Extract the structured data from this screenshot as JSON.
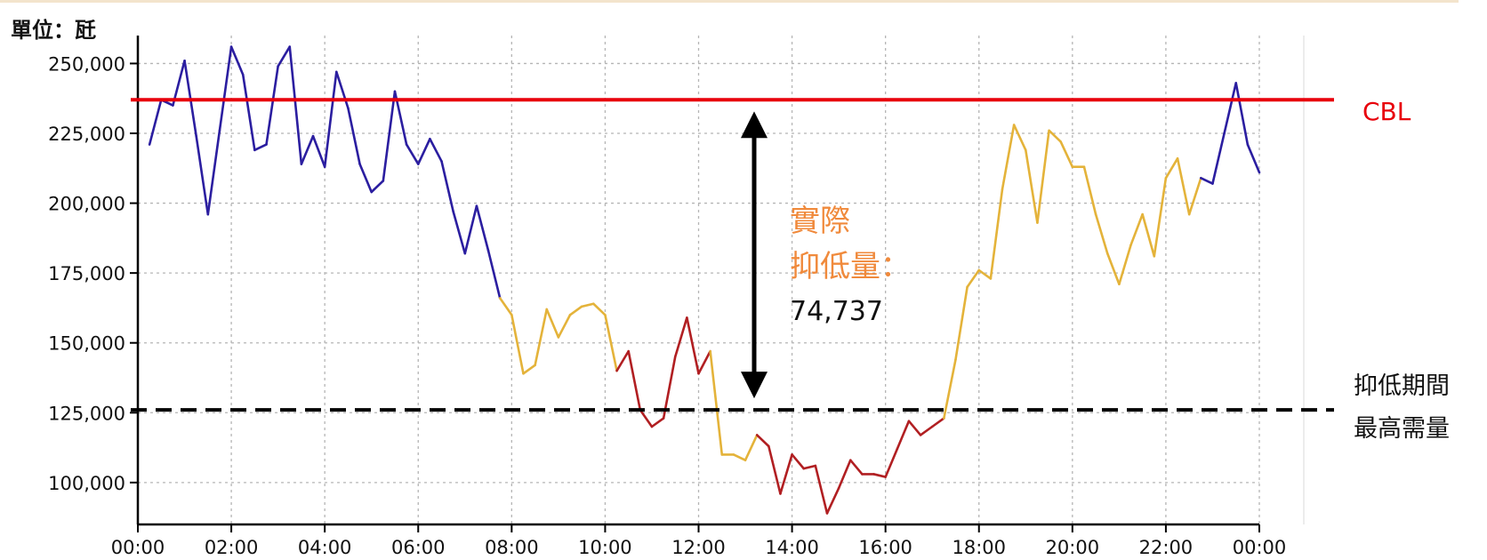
{
  "unit_label": "單位：瓩",
  "chart_data": {
    "type": "line",
    "x_ticks": [
      "00:00",
      "02:00",
      "04:00",
      "06:00",
      "08:00",
      "10:00",
      "12:00",
      "14:00",
      "16:00",
      "18:00",
      "20:00",
      "22:00",
      "00:00"
    ],
    "y_ticks": [
      "100,000",
      "125,000",
      "150,000",
      "175,000",
      "200,000",
      "225,000",
      "250,000"
    ],
    "ylim": [
      85000,
      260000
    ],
    "xlim": [
      0,
      24
    ],
    "grid": true,
    "x_hours": [
      0.25,
      0.5,
      0.75,
      1.0,
      1.25,
      1.5,
      1.75,
      2.0,
      2.25,
      2.5,
      2.75,
      3.0,
      3.25,
      3.5,
      3.75,
      4.0,
      4.25,
      4.5,
      4.75,
      5.0,
      5.25,
      5.5,
      5.75,
      6.0,
      6.25,
      6.5,
      6.75,
      7.0,
      7.25,
      7.5,
      7.75,
      8.0,
      8.25,
      8.5,
      8.75,
      9.0,
      9.25,
      9.5,
      9.75,
      10.0,
      10.25,
      10.5,
      10.75,
      11.0,
      11.25,
      11.5,
      11.75,
      12.0,
      12.25,
      12.5,
      12.75,
      13.0,
      13.25,
      13.5,
      13.75,
      14.0,
      14.25,
      14.5,
      14.75,
      15.0,
      15.25,
      15.5,
      15.75,
      16.0,
      16.25,
      16.5,
      16.75,
      17.0,
      17.25,
      17.5,
      17.75,
      18.0,
      18.25,
      18.5,
      18.75,
      19.0,
      19.25,
      19.5,
      19.75,
      20.0,
      20.25,
      20.5,
      20.75,
      21.0,
      21.25,
      21.5,
      21.75,
      22.0,
      22.25,
      22.5,
      22.75,
      23.0,
      23.25,
      23.5,
      23.75,
      24.0
    ],
    "values": [
      221000,
      237000,
      235000,
      251000,
      224000,
      196000,
      226000,
      256000,
      246000,
      219000,
      221000,
      249000,
      256000,
      214000,
      224000,
      213000,
      247000,
      234000,
      214000,
      204000,
      208000,
      240000,
      221000,
      214000,
      223000,
      215000,
      197000,
      182000,
      199000,
      183000,
      166000,
      160000,
      139000,
      142000,
      162000,
      152000,
      160000,
      163000,
      164000,
      160000,
      140000,
      147000,
      126000,
      120000,
      123000,
      145000,
      159000,
      139000,
      147000,
      110000,
      110000,
      108000,
      117000,
      113000,
      96000,
      110000,
      105000,
      106000,
      89000,
      98000,
      108000,
      103000,
      103000,
      102000,
      112000,
      122000,
      117000,
      120000,
      123000,
      144000,
      170000,
      176000,
      173000,
      205000,
      228000,
      219000,
      193000,
      226000,
      222000,
      213000,
      213000,
      196000,
      182000,
      171000,
      185000,
      196000,
      181000,
      209000,
      216000,
      196000,
      209000,
      207000,
      225000,
      243000,
      221000,
      211000
    ],
    "segment_colors": {
      "blue": "#2b1ea0",
      "yellow": "#e4b33a",
      "red": "#b11f22"
    },
    "point_colors": [
      "blue",
      "blue",
      "blue",
      "blue",
      "blue",
      "blue",
      "blue",
      "blue",
      "blue",
      "blue",
      "blue",
      "blue",
      "blue",
      "blue",
      "blue",
      "blue",
      "blue",
      "blue",
      "blue",
      "blue",
      "blue",
      "blue",
      "blue",
      "blue",
      "blue",
      "blue",
      "blue",
      "blue",
      "blue",
      "blue",
      "blue",
      "yellow",
      "yellow",
      "yellow",
      "yellow",
      "yellow",
      "yellow",
      "yellow",
      "yellow",
      "yellow",
      "yellow",
      "red",
      "red",
      "red",
      "red",
      "red",
      "red",
      "red",
      "red",
      "yellow",
      "yellow",
      "yellow",
      "yellow",
      "red",
      "red",
      "red",
      "red",
      "red",
      "red",
      "red",
      "red",
      "red",
      "red",
      "red",
      "red",
      "red",
      "red",
      "red",
      "red",
      "yellow",
      "yellow",
      "yellow",
      "yellow",
      "yellow",
      "yellow",
      "yellow",
      "yellow",
      "yellow",
      "yellow",
      "yellow",
      "yellow",
      "yellow",
      "yellow",
      "yellow",
      "yellow",
      "yellow",
      "yellow",
      "yellow",
      "yellow",
      "yellow",
      "yellow",
      "blue",
      "blue",
      "blue",
      "blue",
      "blue"
    ],
    "cbl": {
      "label": "CBL",
      "value": 237000,
      "color": "#e8000b"
    },
    "peak_line": {
      "value": 126000,
      "label_line1": "抑低期間",
      "label_line2": "最高需量"
    },
    "annotation": {
      "line1": "實際",
      "line2": "抑低量：",
      "value": "74,737",
      "color": "#f08a3c"
    }
  }
}
